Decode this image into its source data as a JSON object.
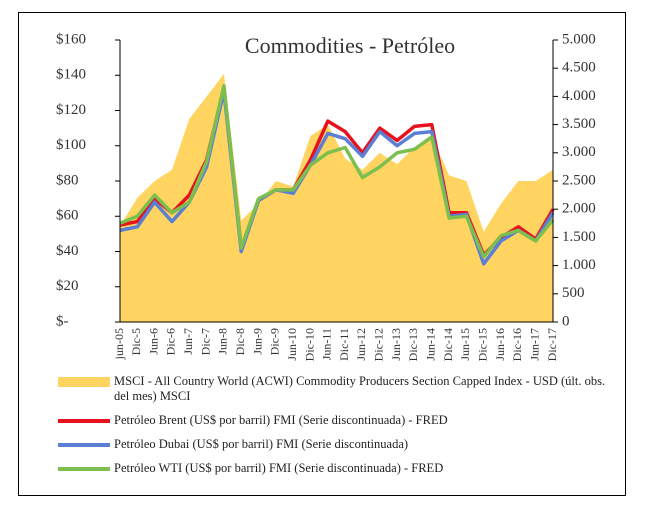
{
  "chart_data": {
    "type": "line",
    "title": "Commodities - Petróleo",
    "categories": [
      "jun-05",
      "Dic-5",
      "Jun-6",
      "Dic-6",
      "Jun-7",
      "Dic-7",
      "Jun-8",
      "Dic-8",
      "Jun-9",
      "Dic-9",
      "Jun-10",
      "Dic-10",
      "Jun-11",
      "Dic-11",
      "Jun-12",
      "Dic-12",
      "Jun-13",
      "Dic-13",
      "Jun-14",
      "Dic-14",
      "Jun-15",
      "Dic-15",
      "Jun-16",
      "Dic-16",
      "Jun-17",
      "Dic-17"
    ],
    "series": [
      {
        "name": "MSCI - All Country World (ACWI) Commodity Producers Section Capped Index - USD (últ. obs. del mes) MSCI",
        "color": "#ffd460",
        "style": "area",
        "axis": "y2",
        "values": [
          1700,
          2200,
          2500,
          2700,
          3600,
          4000,
          4400,
          1800,
          2100,
          2500,
          2400,
          3300,
          3500,
          2900,
          2700,
          3000,
          2800,
          3100,
          3300,
          2600,
          2500,
          1600,
          2100,
          2500,
          2500,
          2700
        ]
      },
      {
        "name": "Petróleo Brent (US$ por barril) FMI (Serie discontinuada) - FRED",
        "color": "#e8121e",
        "values": [
          55,
          57,
          70,
          62,
          72,
          92,
          133,
          42,
          69,
          75,
          75,
          92,
          114,
          108,
          96,
          110,
          103,
          111,
          112,
          62,
          62,
          38,
          48,
          54,
          47,
          64
        ]
      },
      {
        "name": "Petróleo Dubai (US$ por barril) FMI (Serie discontinuada)",
        "color": "#5b7fd4",
        "values": [
          52,
          54,
          68,
          57,
          68,
          88,
          131,
          40,
          69,
          75,
          73,
          89,
          107,
          104,
          94,
          108,
          100,
          107,
          108,
          60,
          61,
          33,
          46,
          52,
          46,
          62
        ]
      },
      {
        "name": "Petróleo WTI (US$ por barril) FMI (Serie discontinuada) - FRED",
        "color": "#7cbf4e",
        "values": [
          56,
          60,
          72,
          62,
          68,
          91,
          134,
          42,
          70,
          75,
          75,
          89,
          96,
          99,
          82,
          88,
          96,
          98,
          105,
          59,
          60,
          37,
          49,
          52,
          46,
          58
        ]
      }
    ],
    "ylim": [
      0,
      160
    ],
    "yticks": [
      {
        "value": 0,
        "label": "$-"
      },
      {
        "value": 20,
        "label": "$20"
      },
      {
        "value": 40,
        "label": "$40"
      },
      {
        "value": 60,
        "label": "$60"
      },
      {
        "value": 80,
        "label": "$80"
      },
      {
        "value": 100,
        "label": "$100"
      },
      {
        "value": 120,
        "label": "$120"
      },
      {
        "value": 140,
        "label": "$140"
      },
      {
        "value": 160,
        "label": "$160"
      }
    ],
    "y2lim": [
      0,
      5000
    ],
    "y2ticks": [
      0,
      500,
      {
        "value": 1000,
        "label": "1.000"
      },
      {
        "value": 1500,
        "label": "1.500"
      },
      {
        "value": 2000,
        "label": "2.000"
      },
      {
        "value": 2500,
        "label": "2.500"
      },
      {
        "value": 3000,
        "label": "3.000"
      },
      {
        "value": 3500,
        "label": "3.500"
      },
      {
        "value": 4000,
        "label": "4.000"
      },
      {
        "value": 4500,
        "label": "4.500"
      },
      {
        "value": 5000,
        "label": "5.000"
      }
    ]
  }
}
